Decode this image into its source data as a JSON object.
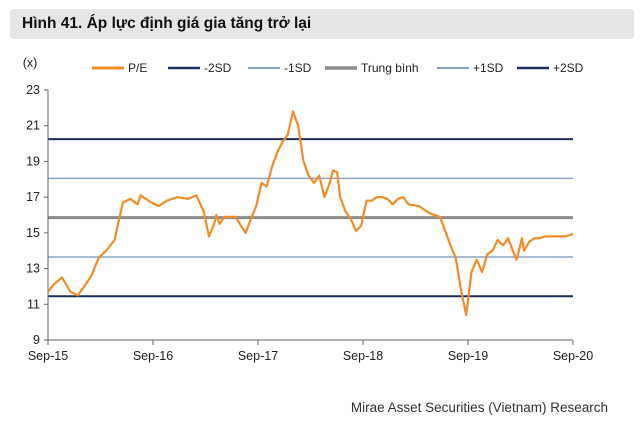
{
  "figure": {
    "title": "Hình 41. Áp lực định giá gia tăng trở lại",
    "source": "Mirae Asset Securities (Vietnam) Research"
  },
  "chart_data": {
    "type": "line",
    "ylabel": "(x)",
    "ylim": [
      9,
      23
    ],
    "yticks": [
      9,
      11,
      13,
      15,
      17,
      19,
      21,
      23
    ],
    "yticks_labels": [
      "9",
      "11",
      "13",
      "15",
      "17",
      "19",
      "21",
      "23"
    ],
    "xlim": [
      2015.667,
      2020.667
    ],
    "xticks": [
      2015.667,
      2016.667,
      2017.667,
      2018.667,
      2019.667,
      2020.667
    ],
    "xtick_labels": [
      "Sep-15",
      "Sep-16",
      "Sep-17",
      "Sep-18",
      "Sep-19",
      "Sep-20"
    ],
    "reference_lines": [
      {
        "name": "-2SD",
        "value": 11.45,
        "color": "#1f2d5c",
        "width": 2
      },
      {
        "name": "-1SD",
        "value": 13.65,
        "color": "#8aa3c8",
        "width": 1.5
      },
      {
        "name": "Trung bình",
        "value": 15.85,
        "color": "#8c8c8c",
        "width": 3
      },
      {
        "name": "+1SD",
        "value": 18.05,
        "color": "#8aa3c8",
        "width": 1.5
      },
      {
        "name": "+2SD",
        "value": 20.25,
        "color": "#1f2d5c",
        "width": 2
      }
    ],
    "series": [
      {
        "name": "P/E",
        "color": "#f28c28",
        "x": [
          2015.667,
          2015.72,
          2015.8,
          2015.88,
          2015.95,
          2016.0,
          2016.08,
          2016.15,
          2016.22,
          2016.3,
          2016.38,
          2016.45,
          2016.52,
          2016.55,
          2016.6,
          2016.65,
          2016.72,
          2016.8,
          2016.9,
          2017.0,
          2017.08,
          2017.15,
          2017.2,
          2017.25,
          2017.27,
          2017.3,
          2017.35,
          2017.45,
          2017.55,
          2017.6,
          2017.65,
          2017.7,
          2017.75,
          2017.8,
          2017.85,
          2017.9,
          2017.95,
          2018.0,
          2018.05,
          2018.1,
          2018.15,
          2018.2,
          2018.25,
          2018.3,
          2018.35,
          2018.38,
          2018.42,
          2018.45,
          2018.5,
          2018.55,
          2018.6,
          2018.65,
          2018.7,
          2018.75,
          2018.8,
          2018.85,
          2018.9,
          2018.95,
          2019.0,
          2019.05,
          2019.1,
          2019.2,
          2019.3,
          2019.4,
          2019.5,
          2019.55,
          2019.6,
          2019.65,
          2019.7,
          2019.75,
          2019.8,
          2019.85,
          2019.9,
          2019.95,
          2020.0,
          2020.05,
          2020.1,
          2020.13,
          2020.16,
          2020.18,
          2020.2,
          2020.25,
          2020.3,
          2020.35,
          2020.4,
          2020.45,
          2020.5,
          2020.55,
          2020.6,
          2020.667
        ],
        "values": [
          11.7,
          12.1,
          12.5,
          11.7,
          11.5,
          11.9,
          12.6,
          13.6,
          14.0,
          14.6,
          16.7,
          16.9,
          16.6,
          17.1,
          16.9,
          16.7,
          16.5,
          16.8,
          17.0,
          16.9,
          17.1,
          16.2,
          14.8,
          15.5,
          16.0,
          15.5,
          15.9,
          15.9,
          15.0,
          15.8,
          16.5,
          17.8,
          17.6,
          18.7,
          19.5,
          20.1,
          20.5,
          21.8,
          21.0,
          19.0,
          18.2,
          17.8,
          18.2,
          17.0,
          17.8,
          18.5,
          18.4,
          17.0,
          16.2,
          15.8,
          15.1,
          15.4,
          16.8,
          16.8,
          17.0,
          17.0,
          16.9,
          16.6,
          16.9,
          17.0,
          16.6,
          16.5,
          16.1,
          15.9,
          14.3,
          13.6,
          11.8,
          10.4,
          12.8,
          13.5,
          12.8,
          13.8,
          14.0,
          14.6,
          14.3,
          14.7,
          13.9,
          13.5,
          14.2,
          14.7,
          14.0,
          14.5,
          14.7,
          14.7,
          14.8,
          14.8,
          14.8,
          14.8,
          14.8,
          14.95
        ]
      }
    ],
    "legend": [
      "P/E",
      "-2SD",
      "-1SD",
      "Trung bình",
      "+1SD",
      "+2SD"
    ],
    "legend_position": "top"
  }
}
